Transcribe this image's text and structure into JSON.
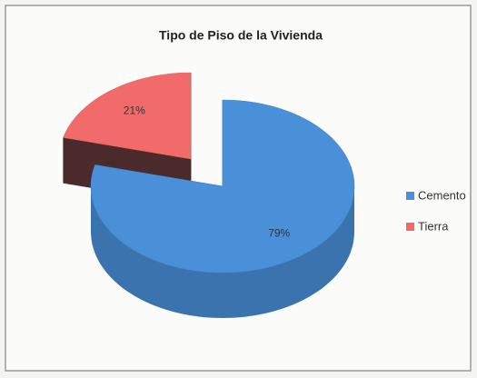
{
  "chart_data": {
    "type": "pie",
    "title": "Tipo de Piso de la Vivienda",
    "categories": [
      "Cemento",
      "Tierra"
    ],
    "values": [
      79,
      21
    ],
    "value_labels": [
      "79%",
      "21%"
    ],
    "colors": [
      "#4a90d9",
      "#f26b6b"
    ],
    "legend": "right"
  }
}
